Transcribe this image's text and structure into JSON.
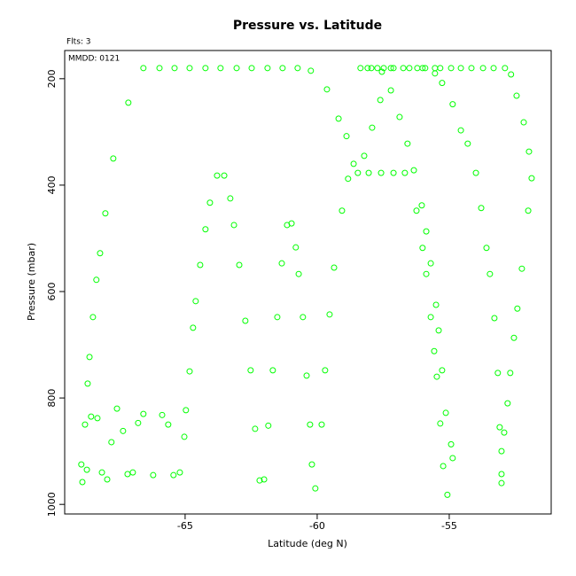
{
  "chart_data": {
    "type": "scatter",
    "title": "Pressure vs. Latitude",
    "annotations": [
      "Flts: 3",
      "MMDD: 0121"
    ],
    "x_label": "Latitude (deg N)",
    "y_label": "Pressure (mbar)",
    "color": "#00ff00",
    "xlim": [
      -69.56,
      -51.14
    ],
    "xticks": [
      -65,
      -60,
      -55
    ],
    "ylim": [
      147,
      1018
    ],
    "yticks": [
      200,
      400,
      600,
      800,
      1000
    ],
    "y_inverted": true,
    "x": [
      -66.58,
      -65.97,
      -65.4,
      -64.83,
      -64.23,
      -63.66,
      -63.05,
      -62.48,
      -61.88,
      -61.31,
      -60.74,
      -60.24,
      -58.36,
      -58.09,
      -57.95,
      -57.72,
      -57.48,
      -57.21,
      -57.11,
      -56.74,
      -56.51,
      -56.21,
      -56.01,
      -55.91,
      -55.54,
      -55.34,
      -54.93,
      -54.56,
      -54.16,
      -53.72,
      -53.32,
      -52.89,
      -67.15,
      -67.72,
      -68.02,
      -68.22,
      -68.36,
      -68.49,
      -68.62,
      -68.69,
      -68.79,
      -68.93,
      -68.89,
      -68.72,
      -68.56,
      -68.32,
      -68.15,
      -67.95,
      -67.79,
      -67.58,
      -67.35,
      -67.18,
      -66.98,
      -66.78,
      -66.58,
      -66.21,
      -65.87,
      -65.64,
      -65.44,
      -65.2,
      -65.03,
      -64.97,
      -64.83,
      -64.7,
      -64.6,
      -64.43,
      -64.23,
      -64.06,
      -63.79,
      -63.52,
      -63.29,
      -63.15,
      -62.95,
      -62.72,
      -62.52,
      -62.35,
      -62.18,
      -62.01,
      -61.85,
      -61.68,
      -61.51,
      -61.34,
      -61.14,
      -60.97,
      -60.81,
      -60.7,
      -60.54,
      -60.4,
      -60.27,
      -60.2,
      -60.07,
      -59.83,
      -59.7,
      -59.53,
      -59.36,
      -59.06,
      -58.83,
      -58.62,
      -58.46,
      -58.22,
      -58.05,
      -57.92,
      -59.63,
      -59.19,
      -58.89,
      -57.58,
      -57.55,
      -57.21,
      -57.61,
      -57.11,
      -56.88,
      -56.68,
      -56.58,
      -56.34,
      -56.24,
      -56.04,
      -56.01,
      -55.87,
      -55.87,
      -55.7,
      -55.7,
      -55.57,
      -55.5,
      -55.47,
      -55.4,
      -55.34,
      -55.27,
      -55.23,
      -55.13,
      -55.07,
      -54.93,
      -54.87,
      -55.54,
      -55.27,
      -54.87,
      -54.56,
      -54.3,
      -53.99,
      -53.79,
      -53.59,
      -53.46,
      -53.29,
      -53.16,
      -53.09,
      -53.02,
      -53.02,
      -53.02,
      -52.92,
      -52.79,
      -52.69,
      -52.66,
      -52.55,
      -52.45,
      -52.42,
      -52.25,
      -52.18,
      -52.01,
      -51.98,
      -51.88
    ],
    "values": [
      180,
      180,
      180,
      180,
      180,
      180,
      180,
      180,
      180,
      180,
      180,
      185,
      180,
      180,
      180,
      180,
      180,
      180,
      180,
      180,
      180,
      180,
      180,
      180,
      180,
      180,
      180,
      180,
      180,
      180,
      180,
      180,
      245,
      350,
      453,
      528,
      578,
      648,
      723,
      773,
      850,
      925,
      958,
      935,
      835,
      838,
      940,
      953,
      883,
      820,
      862,
      943,
      940,
      847,
      830,
      945,
      832,
      850,
      945,
      940,
      873,
      823,
      750,
      668,
      618,
      550,
      483,
      433,
      382,
      382,
      425,
      475,
      550,
      655,
      748,
      858,
      955,
      953,
      852,
      748,
      648,
      547,
      475,
      472,
      517,
      567,
      648,
      758,
      850,
      925,
      970,
      850,
      748,
      643,
      555,
      448,
      388,
      360,
      377,
      345,
      377,
      292,
      220,
      275,
      308,
      377,
      187,
      222,
      240,
      377,
      272,
      377,
      322,
      372,
      448,
      438,
      518,
      487,
      567,
      547,
      648,
      712,
      625,
      760,
      673,
      848,
      748,
      928,
      828,
      982,
      887,
      913,
      190,
      208,
      248,
      297,
      322,
      377,
      443,
      518,
      567,
      650,
      753,
      855,
      900,
      943,
      960,
      865,
      810,
      753,
      192,
      687,
      232,
      632,
      557,
      282,
      448,
      337,
      387
    ]
  }
}
